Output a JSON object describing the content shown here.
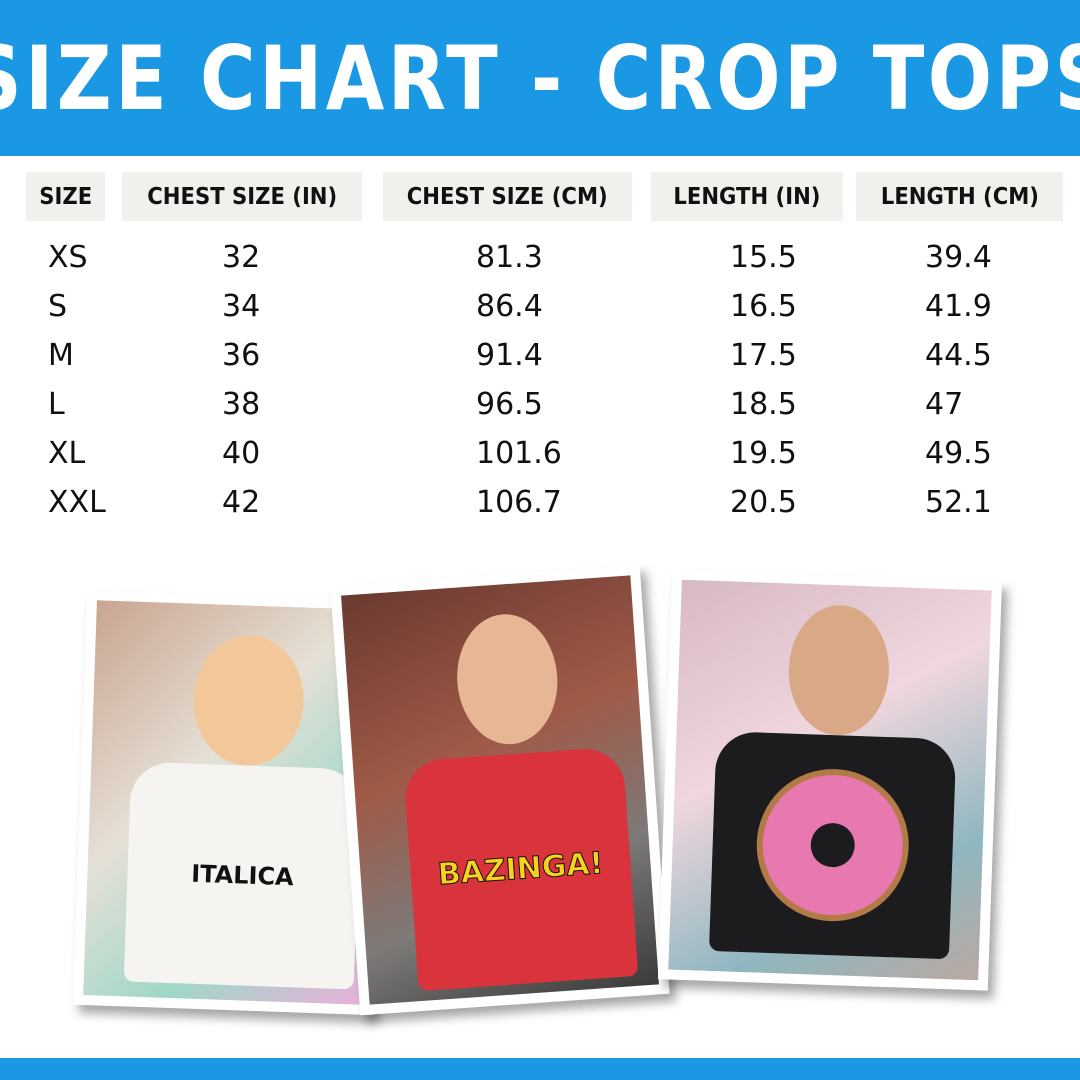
{
  "title": "SIZE CHART - CROP TOPS",
  "colors": {
    "brand_blue": "#1b98e3",
    "header_cell_bg": "#f1f0ec"
  },
  "table": {
    "headers": [
      "SIZE",
      "CHEST SIZE (IN)",
      "CHEST SIZE (CM)",
      "LENGTH (IN)",
      "LENGTH (CM)"
    ],
    "rows": [
      [
        "XS",
        "32",
        "81.3",
        "15.5",
        "39.4"
      ],
      [
        "S",
        "34",
        "86.4",
        "16.5",
        "41.9"
      ],
      [
        "M",
        "36",
        "91.4",
        "17.5",
        "44.5"
      ],
      [
        "L",
        "38",
        "96.5",
        "18.5",
        "47"
      ],
      [
        "XL",
        "40",
        "101.6",
        "19.5",
        "49.5"
      ],
      [
        "XXL",
        "42",
        "106.7",
        "20.5",
        "52.1"
      ]
    ]
  },
  "photos": [
    {
      "shirt_print": "ITALICA",
      "shirt_color": "#f6f4f1"
    },
    {
      "shirt_print": "BAZINGA!",
      "shirt_color": "#d9343c"
    },
    {
      "shirt_print": "donut",
      "shirt_color": "#1c1c1e"
    }
  ]
}
